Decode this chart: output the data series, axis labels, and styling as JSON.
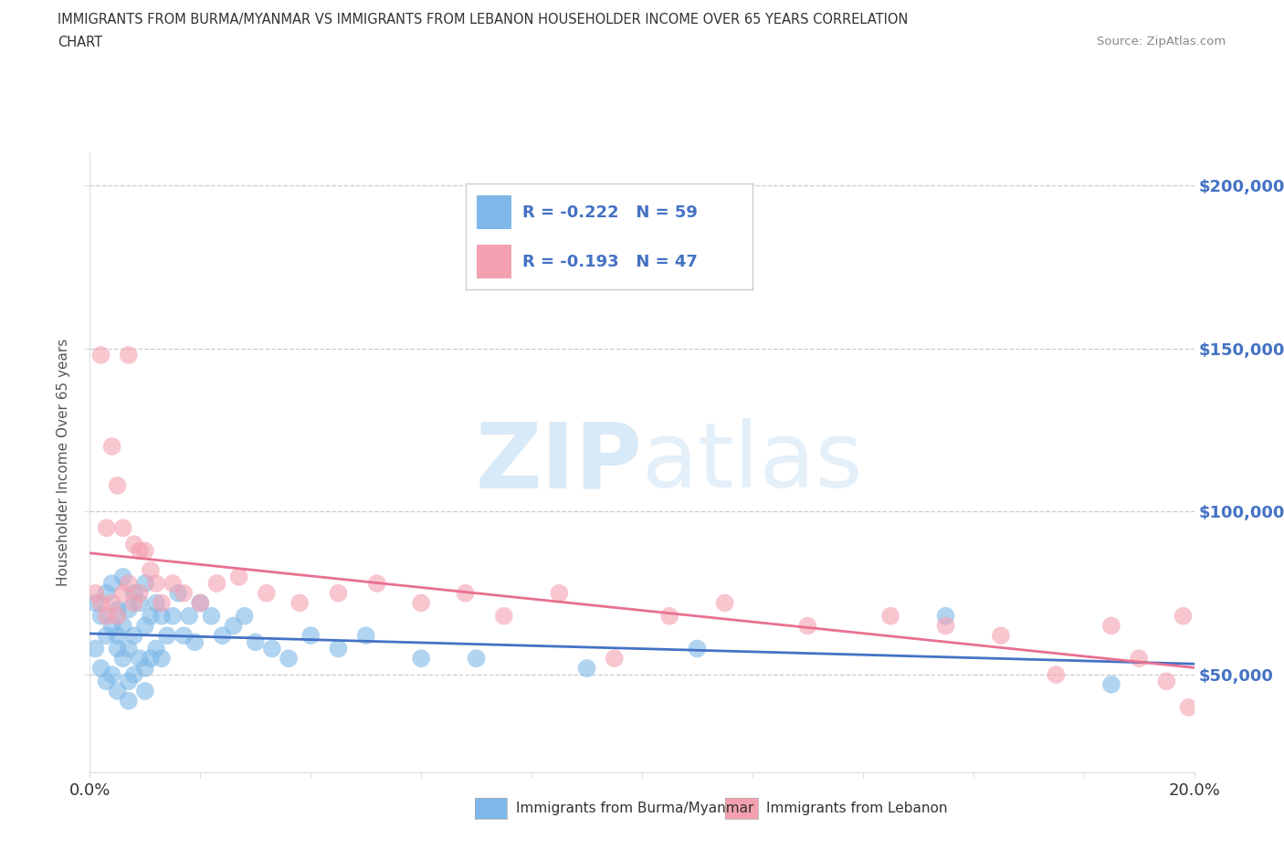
{
  "title_line1": "IMMIGRANTS FROM BURMA/MYANMAR VS IMMIGRANTS FROM LEBANON HOUSEHOLDER INCOME OVER 65 YEARS CORRELATION",
  "title_line2": "CHART",
  "source_text": "Source: ZipAtlas.com",
  "ylabel": "Householder Income Over 65 years",
  "xmin": 0.0,
  "xmax": 0.2,
  "ymin": 20000,
  "ymax": 210000,
  "yticks": [
    50000,
    100000,
    150000,
    200000
  ],
  "ytick_labels": [
    "$50,000",
    "$100,000",
    "$150,000",
    "$200,000"
  ],
  "xticks": [
    0.0,
    0.02,
    0.04,
    0.06,
    0.08,
    0.1,
    0.12,
    0.14,
    0.16,
    0.18,
    0.2
  ],
  "color_burma": "#7eb8e8",
  "color_lebanon": "#f4a0b0",
  "line_color_burma": "#4472c4",
  "line_color_lebanon": "#e87090",
  "R_burma": -0.222,
  "N_burma": 59,
  "R_lebanon": -0.193,
  "N_lebanon": 47,
  "legend_label_burma": "Immigrants from Burma/Myanmar",
  "legend_label_lebanon": "Immigrants from Lebanon",
  "watermark_zip": "ZIP",
  "watermark_atlas": "atlas",
  "background_color": "#ffffff",
  "grid_color": "#cccccc",
  "axis_label_color": "#4472c4",
  "burma_x": [
    0.001,
    0.001,
    0.002,
    0.002,
    0.003,
    0.003,
    0.003,
    0.004,
    0.004,
    0.004,
    0.005,
    0.005,
    0.005,
    0.005,
    0.006,
    0.006,
    0.006,
    0.007,
    0.007,
    0.007,
    0.007,
    0.008,
    0.008,
    0.008,
    0.009,
    0.009,
    0.01,
    0.01,
    0.01,
    0.01,
    0.011,
    0.011,
    0.012,
    0.012,
    0.013,
    0.013,
    0.014,
    0.015,
    0.016,
    0.017,
    0.018,
    0.019,
    0.02,
    0.022,
    0.024,
    0.026,
    0.028,
    0.03,
    0.033,
    0.036,
    0.04,
    0.045,
    0.05,
    0.06,
    0.07,
    0.09,
    0.11,
    0.155,
    0.185
  ],
  "burma_y": [
    72000,
    58000,
    68000,
    52000,
    75000,
    62000,
    48000,
    78000,
    65000,
    50000,
    70000,
    58000,
    45000,
    62000,
    80000,
    65000,
    55000,
    70000,
    58000,
    48000,
    42000,
    75000,
    62000,
    50000,
    72000,
    55000,
    78000,
    65000,
    52000,
    45000,
    68000,
    55000,
    72000,
    58000,
    68000,
    55000,
    62000,
    68000,
    75000,
    62000,
    68000,
    60000,
    72000,
    68000,
    62000,
    65000,
    68000,
    60000,
    58000,
    55000,
    62000,
    58000,
    62000,
    55000,
    55000,
    52000,
    58000,
    68000,
    47000
  ],
  "lebanon_x": [
    0.001,
    0.002,
    0.002,
    0.003,
    0.003,
    0.004,
    0.004,
    0.005,
    0.005,
    0.006,
    0.006,
    0.007,
    0.007,
    0.008,
    0.008,
    0.009,
    0.009,
    0.01,
    0.011,
    0.012,
    0.013,
    0.015,
    0.017,
    0.02,
    0.023,
    0.027,
    0.032,
    0.038,
    0.045,
    0.052,
    0.06,
    0.068,
    0.075,
    0.085,
    0.095,
    0.105,
    0.115,
    0.13,
    0.145,
    0.155,
    0.165,
    0.175,
    0.185,
    0.19,
    0.195,
    0.198,
    0.199
  ],
  "lebanon_y": [
    75000,
    72000,
    148000,
    68000,
    95000,
    72000,
    120000,
    68000,
    108000,
    75000,
    95000,
    148000,
    78000,
    72000,
    90000,
    88000,
    75000,
    88000,
    82000,
    78000,
    72000,
    78000,
    75000,
    72000,
    78000,
    80000,
    75000,
    72000,
    75000,
    78000,
    72000,
    75000,
    68000,
    75000,
    55000,
    68000,
    72000,
    65000,
    68000,
    65000,
    62000,
    50000,
    65000,
    55000,
    48000,
    68000,
    40000
  ]
}
